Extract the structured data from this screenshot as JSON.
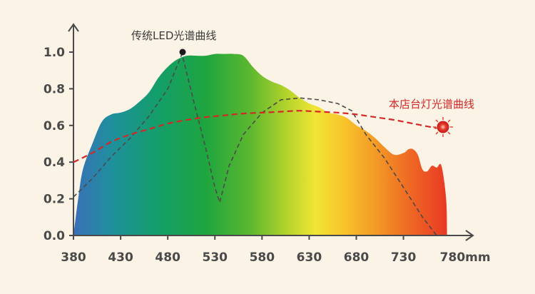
{
  "chart_data": {
    "type": "area",
    "x_ticks": [
      "380",
      "430",
      "480",
      "530",
      "580",
      "630",
      "680",
      "730",
      "780mm"
    ],
    "y_ticks": [
      "0.0",
      "0.2",
      "0.4",
      "0.6",
      "0.8",
      "1.0"
    ],
    "xlim": [
      380,
      780
    ],
    "ylim": [
      0,
      1.0
    ],
    "series": [
      {
        "name": "",
        "kind": "spectrum-fill",
        "x": [
          380,
          385,
          390,
          400,
          410,
          420,
          430,
          440,
          450,
          460,
          470,
          480,
          490,
          500,
          510,
          520,
          530,
          540,
          550,
          560,
          570,
          580,
          590,
          600,
          610,
          620,
          630,
          640,
          650,
          660,
          670,
          680,
          690,
          700,
          710,
          720,
          730,
          735,
          740,
          745,
          750,
          755,
          760,
          765,
          770,
          775,
          776
        ],
        "y": [
          0.0,
          0.2,
          0.36,
          0.5,
          0.62,
          0.66,
          0.67,
          0.69,
          0.73,
          0.78,
          0.86,
          0.92,
          0.96,
          0.98,
          0.98,
          0.98,
          0.99,
          0.99,
          0.99,
          0.98,
          0.92,
          0.87,
          0.84,
          0.82,
          0.79,
          0.75,
          0.72,
          0.7,
          0.67,
          0.66,
          0.64,
          0.6,
          0.57,
          0.53,
          0.48,
          0.44,
          0.45,
          0.47,
          0.47,
          0.44,
          0.36,
          0.35,
          0.38,
          0.37,
          0.38,
          0.2,
          0.0
        ]
      },
      {
        "name": "传统LED光谱曲线",
        "color": "#4a4a4a",
        "dash": true,
        "x": [
          380,
          400,
          420,
          440,
          460,
          480,
          495,
          510,
          520,
          530,
          535,
          540,
          545,
          560,
          580,
          600,
          620,
          640,
          660,
          675,
          690,
          710,
          730,
          750,
          765
        ],
        "y": [
          0.21,
          0.31,
          0.43,
          0.53,
          0.65,
          0.8,
          0.99,
          0.68,
          0.48,
          0.26,
          0.18,
          0.28,
          0.38,
          0.55,
          0.67,
          0.74,
          0.75,
          0.74,
          0.72,
          0.68,
          0.55,
          0.42,
          0.26,
          0.1,
          0.0
        ]
      },
      {
        "name": "本店台灯光谱曲线",
        "color": "#d42828",
        "dash": true,
        "x": [
          380,
          400,
          420,
          440,
          460,
          480,
          500,
          520,
          540,
          560,
          580,
          600,
          620,
          640,
          660,
          680,
          700,
          720,
          740,
          760,
          765
        ],
        "y": [
          0.4,
          0.45,
          0.51,
          0.55,
          0.58,
          0.61,
          0.63,
          0.645,
          0.655,
          0.665,
          0.67,
          0.675,
          0.68,
          0.675,
          0.67,
          0.66,
          0.645,
          0.63,
          0.61,
          0.59,
          0.585
        ]
      }
    ],
    "annotations": {
      "led_label": "传统LED光谱曲线",
      "lamp_label": "本店台灯光谱曲线"
    },
    "colors": {
      "lamp": "#d42828",
      "led": "#4a4a4a",
      "axis": "#4a4a4a",
      "background": "#faf3e6"
    },
    "grid": false,
    "legend": "none"
  }
}
